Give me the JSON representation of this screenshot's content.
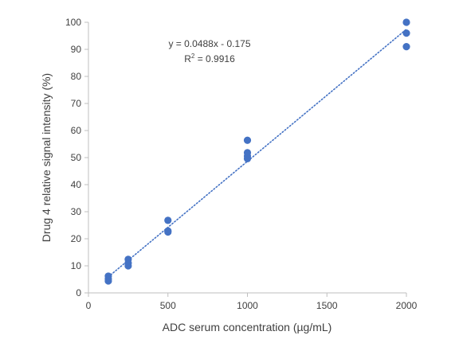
{
  "chart_data": {
    "type": "scatter",
    "title": "",
    "xlabel": "ADC serum concentration (µg/mL)",
    "ylabel": "Drug 4 relative signal intensity (%)",
    "xlim": [
      0,
      2000
    ],
    "ylim": [
      0,
      100
    ],
    "xticks": [
      0,
      500,
      1000,
      1500,
      2000
    ],
    "yticks": [
      0,
      10,
      20,
      30,
      40,
      50,
      60,
      70,
      80,
      90,
      100
    ],
    "grid": false,
    "series": [
      {
        "marker_color": "#4472C4",
        "points": [
          {
            "x": 125,
            "y": 6.2
          },
          {
            "x": 125,
            "y": 5.2
          },
          {
            "x": 125,
            "y": 4.4
          },
          {
            "x": 250,
            "y": 12.4
          },
          {
            "x": 250,
            "y": 11.0
          },
          {
            "x": 250,
            "y": 10.0
          },
          {
            "x": 500,
            "y": 26.8
          },
          {
            "x": 500,
            "y": 22.9
          },
          {
            "x": 500,
            "y": 22.5
          },
          {
            "x": 1000,
            "y": 56.4
          },
          {
            "x": 1000,
            "y": 51.8
          },
          {
            "x": 1000,
            "y": 50.6
          },
          {
            "x": 1000,
            "y": 49.6
          },
          {
            "x": 2000,
            "y": 100.0
          },
          {
            "x": 2000,
            "y": 96.0
          },
          {
            "x": 2000,
            "y": 91.0
          }
        ]
      }
    ],
    "trendline": {
      "type": "linear",
      "slope": 0.0488,
      "intercept": -0.175,
      "x_range": [
        125,
        2000
      ],
      "style": "dotted",
      "color": "#4472C4"
    },
    "annotations": {
      "equation": "y = 0.0488x - 0.175",
      "r2_prefix": "R",
      "r2_exponent": "2",
      "r2_value": " = 0.9916"
    }
  }
}
